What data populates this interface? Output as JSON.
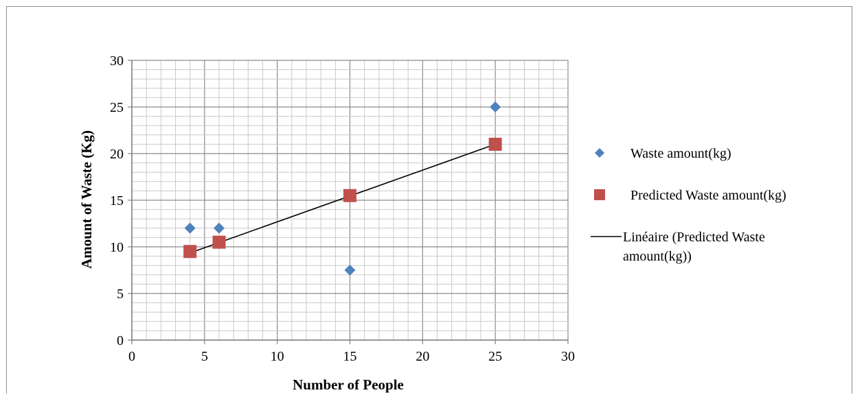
{
  "chart_data": {
    "type": "scatter",
    "title": "",
    "xlabel": "Number of People",
    "ylabel": "Amount of Waste (Kg)",
    "xlim": [
      0,
      30
    ],
    "ylim": [
      0,
      30
    ],
    "x_ticks": [
      0,
      5,
      10,
      15,
      20,
      25,
      30
    ],
    "y_ticks": [
      0,
      5,
      10,
      15,
      20,
      25,
      30
    ],
    "grid": true,
    "legend_position": "right",
    "series": [
      {
        "name": "Waste amount(kg)",
        "kind": "scatter",
        "marker": "diamond",
        "color": "#4F81BD",
        "x": [
          4,
          6,
          15,
          25
        ],
        "y": [
          12,
          12,
          7.5,
          25
        ]
      },
      {
        "name": "Predicted Waste amount(kg)",
        "kind": "scatter",
        "marker": "square",
        "color": "#C0504D",
        "x": [
          4,
          6,
          15,
          25
        ],
        "y": [
          9.5,
          10.5,
          15.5,
          21
        ]
      },
      {
        "name": "Linéaire (Predicted Waste amount(kg))",
        "kind": "trendline",
        "color": "#000000",
        "x": [
          4,
          25
        ],
        "y": [
          9.35,
          21
        ]
      }
    ]
  }
}
